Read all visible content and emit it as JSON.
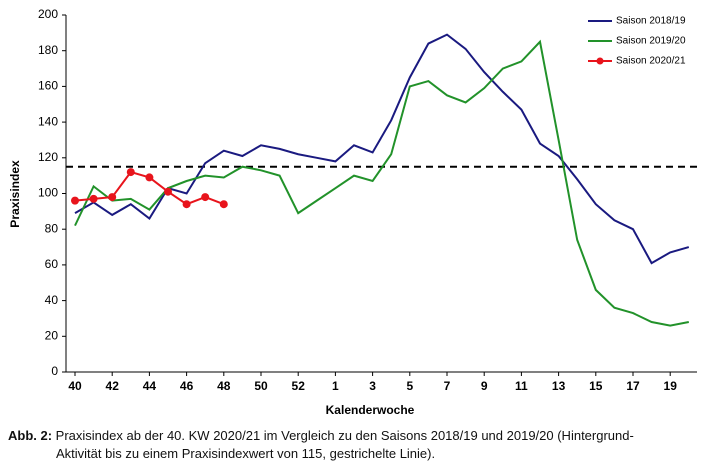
{
  "chart_data": {
    "type": "line",
    "ylabel": "Praxisindex",
    "xlabel": "Kalenderwoche",
    "categories": [
      "40",
      null,
      "42",
      null,
      "44",
      null,
      "46",
      null,
      "48",
      null,
      "50",
      null,
      "52",
      null,
      "1",
      null,
      "3",
      null,
      "5",
      null,
      "7",
      null,
      "9",
      null,
      "11",
      null,
      "13",
      null,
      "15",
      null,
      "17",
      null,
      "19",
      null
    ],
    "ylim": [
      0,
      200
    ],
    "yticks": [
      0,
      20,
      40,
      60,
      80,
      100,
      120,
      140,
      160,
      180,
      200
    ],
    "threshold": 115,
    "grid": false,
    "legend": "upper right",
    "series": [
      {
        "name": "Saison 2018/19",
        "color": "#1a1a80",
        "markers": false,
        "values": [
          89,
          95,
          88,
          94,
          86,
          103,
          100,
          117,
          124,
          121,
          127,
          125,
          122,
          120,
          118,
          127,
          123,
          141,
          165,
          184,
          189,
          181,
          168,
          157,
          147,
          128,
          121,
          108,
          94,
          85,
          80,
          61,
          67,
          70
        ]
      },
      {
        "name": "Saison 2019/20",
        "color": "#22922a",
        "markers": false,
        "values": [
          82,
          104,
          96,
          97,
          91,
          103,
          107,
          110,
          109,
          115,
          113,
          110,
          89,
          96,
          103,
          110,
          107,
          122,
          160,
          163,
          155,
          151,
          159,
          170,
          174,
          185,
          130,
          74,
          46,
          36,
          33,
          28,
          26,
          28
        ]
      },
      {
        "name": "Saison 2020/21",
        "color": "#e8141c",
        "markers": true,
        "values": [
          96,
          97,
          98,
          112,
          109,
          101,
          94,
          98,
          94,
          null,
          null,
          null,
          null,
          null,
          null,
          null,
          null,
          null,
          null,
          null,
          null,
          null,
          null,
          null,
          null,
          null,
          null,
          null,
          null,
          null,
          null,
          null,
          null,
          null
        ]
      }
    ]
  },
  "caption": {
    "label": "Abb. 2:",
    "lines": [
      " Praxisindex ab der 40. KW 2020/21 im Vergleich zu den Saisons 2018/19 und 2019/20 (Hintergrund-",
      "Aktivität bis zu einem Praxisindexwert von 115, gestrichelte Linie)."
    ]
  }
}
